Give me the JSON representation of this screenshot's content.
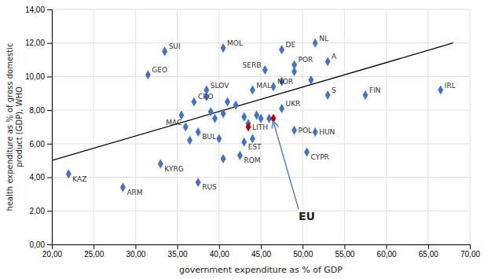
{
  "chart_data": {
    "type": "scatter",
    "xlabel": "government expenditure as % of GDP",
    "ylabel": "health expenditure as % of gross domestic\nproduct (GDP), WHO",
    "xlim": [
      20,
      70
    ],
    "ylim": [
      0,
      14
    ],
    "xticks": [
      {
        "value": 20,
        "label": "20,00"
      },
      {
        "value": 25,
        "label": "25,00"
      },
      {
        "value": 30,
        "label": "30,00"
      },
      {
        "value": 35,
        "label": "35,00"
      },
      {
        "value": 40,
        "label": "40,00"
      },
      {
        "value": 45,
        "label": "45,00"
      },
      {
        "value": 50,
        "label": "50,00"
      },
      {
        "value": 55,
        "label": "55,00"
      },
      {
        "value": 60,
        "label": "60,00"
      },
      {
        "value": 65,
        "label": "65,00"
      },
      {
        "value": 70,
        "label": "70,00"
      }
    ],
    "yticks": [
      {
        "value": 0,
        "label": "0,00"
      },
      {
        "value": 2,
        "label": "2,00"
      },
      {
        "value": 4,
        "label": "4,00"
      },
      {
        "value": 6,
        "label": "6,00"
      },
      {
        "value": 8,
        "label": "8,00"
      },
      {
        "value": 10,
        "label": "10,00"
      },
      {
        "value": 12,
        "label": "12,00"
      },
      {
        "value": 14,
        "label": "14,00"
      }
    ],
    "grid": true,
    "series": [
      {
        "type": "line",
        "color": "#000000",
        "x": [
          20,
          68
        ],
        "values": [
          5.0,
          12.0
        ]
      },
      {
        "type": "scatter",
        "marker": "diamond",
        "color": "#4472C4",
        "x": [
          35.5,
          36.5,
          38.5,
          39.0,
          39.5,
          40.0,
          40.5,
          40.5,
          41.0,
          42.0,
          43.0,
          43.5,
          44.0,
          44.5,
          45.0,
          46.0,
          47.5,
          49.0,
          51.0
        ],
        "values": [
          7.7,
          6.2,
          8.8,
          7.9,
          7.5,
          6.3,
          5.1,
          7.8,
          8.5,
          8.3,
          7.6,
          7.2,
          6.3,
          7.7,
          7.5,
          7.5,
          9.7,
          10.3,
          9.8
        ]
      },
      {
        "type": "scatter",
        "marker": "diamond",
        "labels": [
          "KAZ",
          "SUI",
          "GEO",
          "ARM",
          "KYRG",
          "MAC",
          "MOL",
          "RUS",
          "CRO",
          "BUL",
          "SLOV",
          "LITH",
          "EST",
          "ROM",
          "MAL",
          "DE",
          "NL",
          "SERB",
          "POR",
          "A",
          "NOR",
          "UKR",
          "POL",
          "HUN",
          "CYPR",
          "S",
          "FIN",
          "IRL"
        ],
        "x": [
          22.0,
          33.5,
          31.5,
          28.5,
          33.0,
          36.0,
          40.5,
          37.5,
          37.0,
          37.5,
          38.5,
          43.5,
          43.0,
          42.5,
          44.0,
          47.5,
          51.5,
          45.5,
          49.0,
          53.0,
          46.5,
          47.5,
          49.0,
          51.5,
          50.5,
          53.0,
          57.5,
          66.5
        ],
        "values": [
          4.2,
          11.5,
          10.1,
          3.4,
          4.8,
          7.0,
          11.7,
          3.7,
          8.5,
          6.7,
          9.2,
          7.0,
          6.1,
          5.3,
          9.2,
          11.6,
          12.0,
          10.4,
          10.7,
          10.9,
          9.4,
          8.1,
          6.8,
          6.7,
          5.5,
          8.9,
          8.9,
          9.2
        ],
        "colors": [
          "#4472C4",
          "#4472C4",
          "#4472C4",
          "#4472C4",
          "#4472C4",
          "#4472C4",
          "#4472C4",
          "#4472C4",
          "#4472C4",
          "#4472C4",
          "#4472C4",
          "#C00000",
          "#4472C4",
          "#4472C4",
          "#4472C4",
          "#4472C4",
          "#4472C4",
          "#4472C4",
          "#4472C4",
          "#4472C4",
          "#4472C4",
          "#4472C4",
          "#4472C4",
          "#4472C4",
          "#4472C4",
          "#4472C4",
          "#4472C4",
          "#4472C4"
        ]
      },
      {
        "type": "scatter",
        "marker": "diamond",
        "color": "#C00000",
        "x": [
          46.5
        ],
        "values": [
          7.5
        ]
      }
    ],
    "annotations": [
      {
        "text": "EU",
        "x": 46.5,
        "y": 7.4,
        "color": "#4472C4"
      }
    ]
  }
}
